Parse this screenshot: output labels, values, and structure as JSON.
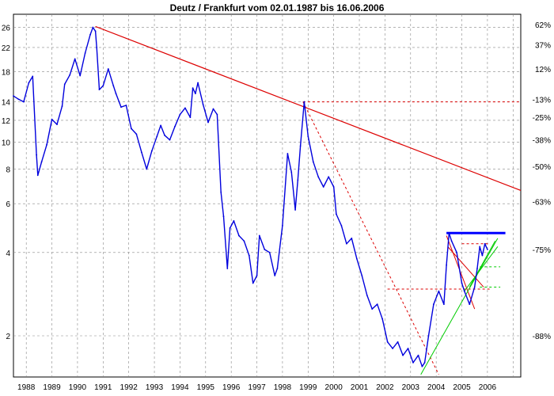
{
  "chart_data": {
    "type": "line",
    "title": "Deutz / Frankfurt vom 02.01.1987 bis 16.06.2006",
    "xlabel": "",
    "ylabel": "",
    "y_scale": "log",
    "grid": true,
    "x_tick_labels": [
      "1988",
      "1989",
      "1990",
      "1991",
      "1992",
      "1993",
      "1994",
      "1995",
      "1996",
      "1997",
      "1998",
      "1999",
      "2000",
      "2001",
      "2002",
      "2003",
      "2004",
      "2005",
      "2006"
    ],
    "y_left_ticks": [
      {
        "value": 26,
        "label": "26"
      },
      {
        "value": 22,
        "label": "22"
      },
      {
        "value": 18,
        "label": "18"
      },
      {
        "value": 14,
        "label": "14"
      },
      {
        "value": 12,
        "label": "12"
      },
      {
        "value": 10,
        "label": "10"
      },
      {
        "value": 8,
        "label": "8"
      },
      {
        "value": 6,
        "label": "6"
      },
      {
        "value": 4,
        "label": "4"
      },
      {
        "value": 2,
        "label": "2"
      }
    ],
    "y_right_ticks": [
      {
        "value": 26.6,
        "label": "62%"
      },
      {
        "value": 22.5,
        "label": "37%"
      },
      {
        "value": 18.4,
        "label": "12%"
      },
      {
        "value": 14.3,
        "label": "-13%"
      },
      {
        "value": 12.3,
        "label": "-25%"
      },
      {
        "value": 10.2,
        "label": "-38%"
      },
      {
        "value": 8.2,
        "label": "-50%"
      },
      {
        "value": 6.1,
        "label": "-63%"
      },
      {
        "value": 4.1,
        "label": "-75%"
      },
      {
        "value": 2.0,
        "label": "-88%"
      }
    ],
    "ylim": [
      1.42,
      29
    ],
    "xlim": [
      1987.0,
      2006.8
    ],
    "colors": {
      "price": "#0000dd",
      "trend_red": "#dd0000",
      "trend_green": "#00cc00",
      "resistance_blue": "#0000ff",
      "grid": "#888888"
    },
    "series": [
      {
        "x": [
          1987.0,
          1987.2,
          1987.4,
          1987.6,
          1987.75,
          1987.9,
          1987.95,
          1988.1,
          1988.3,
          1988.5,
          1988.7,
          1988.9,
          1989.0,
          1989.2,
          1989.4,
          1989.6,
          1989.8,
          1990.0,
          1990.1,
          1990.2,
          1990.25,
          1990.35,
          1990.5,
          1990.7,
          1990.9,
          1991.0,
          1991.2,
          1991.4,
          1991.6,
          1991.8,
          1992.0,
          1992.2,
          1992.4,
          1992.6,
          1992.75,
          1992.9,
          1993.1,
          1993.3,
          1993.5,
          1993.7,
          1993.9,
          1994.0,
          1994.1,
          1994.2,
          1994.4,
          1994.6,
          1994.8,
          1994.95,
          1995.1,
          1995.2,
          1995.35,
          1995.45,
          1995.6,
          1995.8,
          1996.0,
          1996.2,
          1996.35,
          1996.5,
          1996.6,
          1996.8,
          1997.0,
          1997.2,
          1997.3,
          1997.5,
          1997.7,
          1997.85,
          1998.0,
          1998.1,
          1998.2,
          1998.35,
          1998.5,
          1998.7,
          1998.9,
          1999.1,
          1999.3,
          1999.5,
          1999.6,
          1999.8,
          2000.0,
          2000.2,
          2000.4,
          2000.6,
          2000.8,
          2001.0,
          2001.2,
          2001.4,
          2001.6,
          2001.8,
          2002.0,
          2002.2,
          2002.4,
          2002.6,
          2002.8,
          2002.95,
          2003.05,
          2003.2,
          2003.4,
          2003.6,
          2003.8,
          2003.9,
          2004.0,
          2004.1,
          2004.3,
          2004.5,
          2004.6,
          2004.8,
          2005.0,
          2005.1,
          2005.2,
          2005.3,
          2005.4,
          2005.5
        ],
        "values": [
          14.7,
          14.3,
          14.0,
          16.4,
          17.3,
          9.0,
          7.6,
          8.5,
          9.8,
          12.1,
          11.6,
          13.5,
          16.2,
          17.5,
          20.0,
          17.4,
          21.0,
          24.5,
          26.0,
          25.2,
          22.0,
          15.5,
          16.0,
          18.4,
          16.0,
          15.0,
          13.4,
          13.6,
          11.2,
          10.7,
          9.2,
          8.0,
          9.3,
          10.5,
          11.5,
          10.6,
          10.2,
          11.4,
          12.6,
          13.3,
          12.3,
          15.7,
          15.0,
          16.4,
          13.7,
          11.8,
          13.2,
          12.6,
          6.6,
          5.4,
          3.5,
          4.9,
          5.2,
          4.6,
          4.4,
          3.9,
          3.1,
          3.3,
          4.6,
          4.1,
          4.0,
          3.3,
          3.5,
          5.0,
          9.1,
          7.8,
          5.7,
          7.3,
          9.7,
          14.0,
          10.5,
          8.5,
          7.5,
          6.9,
          7.5,
          6.9,
          5.5,
          5.0,
          4.3,
          4.5,
          3.8,
          3.3,
          2.8,
          2.5,
          2.6,
          2.3,
          1.9,
          1.8,
          1.9,
          1.7,
          1.8,
          1.6,
          1.7,
          1.55,
          1.6,
          2.0,
          2.6,
          2.9,
          2.6,
          3.6,
          4.7,
          4.4,
          4.0,
          3.1,
          2.9,
          2.6,
          3.0,
          3.5,
          4.2,
          3.9,
          4.3,
          4.1
        ]
      }
    ],
    "trendlines": [
      {
        "name": "long-term resistance",
        "color": "#dd0000",
        "dash": false,
        "width": 1.2,
        "x": [
          1990.2,
          2006.8
        ],
        "y": [
          26.2,
          6.7
        ]
      },
      {
        "name": "1998 downtrend",
        "color": "#dd0000",
        "dash": true,
        "width": 1.0,
        "x": [
          1998.3,
          2003.6
        ],
        "y": [
          14.0,
          1.45
        ]
      },
      {
        "name": "1998 high level",
        "color": "#dd0000",
        "dash": true,
        "width": 1.0,
        "x": [
          1998.3,
          2006.8
        ],
        "y": [
          14.0,
          14.0
        ]
      },
      {
        "name": "2002 support level",
        "color": "#dd0000",
        "dash": true,
        "width": 1.0,
        "x": [
          2001.6,
          2005.6
        ],
        "y": [
          2.95,
          2.95
        ]
      },
      {
        "name": "2004 high level",
        "color": "#dd0000",
        "dash": true,
        "width": 1.0,
        "x": [
          2004.5,
          2005.6
        ],
        "y": [
          4.3,
          4.3
        ]
      },
      {
        "name": "2004 downtrend",
        "color": "#dd0000",
        "dash": false,
        "width": 1.0,
        "x": [
          2003.9,
          2005.0
        ],
        "y": [
          4.6,
          2.5
        ]
      },
      {
        "name": "2004 support",
        "color": "#dd0000",
        "dash": false,
        "width": 1.0,
        "x": [
          2003.95,
          2005.35
        ],
        "y": [
          4.2,
          3.0
        ]
      },
      {
        "name": "resistance 2004-2005",
        "color": "#0000ff",
        "dash": false,
        "width": 3.0,
        "x": [
          2003.9,
          2006.2
        ],
        "y": [
          4.7,
          4.7
        ]
      },
      {
        "name": "uptrend 2003",
        "color": "#00cc00",
        "dash": false,
        "width": 1.0,
        "x": [
          2002.9,
          2005.9
        ],
        "y": [
          1.45,
          4.5
        ]
      },
      {
        "name": "uptrend 2004a",
        "color": "#00cc00",
        "dash": false,
        "width": 1.0,
        "x": [
          2004.6,
          2005.9
        ],
        "y": [
          2.9,
          4.2
        ]
      },
      {
        "name": "uptrend 2004b",
        "color": "#00cc00",
        "dash": false,
        "width": 1.0,
        "x": [
          2004.8,
          2005.8
        ],
        "y": [
          3.0,
          4.4
        ]
      },
      {
        "name": "green level upper",
        "color": "#00cc00",
        "dash": true,
        "width": 1.0,
        "x": [
          2005.2,
          2006.0
        ],
        "y": [
          3.55,
          3.55
        ]
      },
      {
        "name": "green level lower",
        "color": "#00cc00",
        "dash": true,
        "width": 1.0,
        "x": [
          2005.2,
          2006.0
        ],
        "y": [
          3.0,
          3.0
        ]
      }
    ]
  }
}
